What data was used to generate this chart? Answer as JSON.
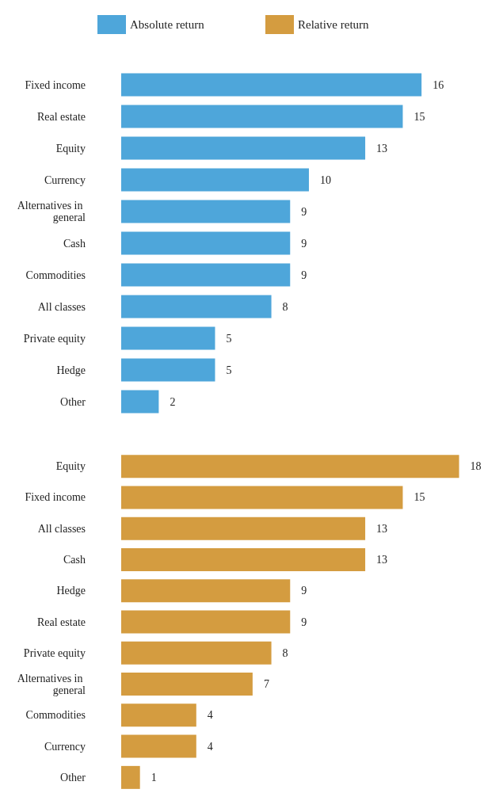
{
  "chart_data": [
    {
      "type": "bar",
      "orientation": "horizontal",
      "categories": [
        "Fixed income",
        "Real estate",
        "Equity",
        "Currency",
        "Alternatives in general",
        "Cash",
        "Commodities",
        "All classes",
        "Private equity",
        "Hedge",
        "Other"
      ],
      "series": [
        {
          "name": "Absolute return",
          "color": "#4ea6da",
          "values": [
            16,
            15,
            13,
            10,
            9,
            9,
            9,
            8,
            5,
            5,
            2
          ]
        }
      ],
      "data_labels": true,
      "legend": "top left",
      "grid": false,
      "tick_labels": "y"
    },
    {
      "type": "bar",
      "orientation": "horizontal",
      "categories": [
        "Equity",
        "Fixed income",
        "All classes",
        "Cash",
        "Hedge",
        "Real estate",
        "Private equity",
        "Alternatives in general",
        "Commodities",
        "Currency",
        "Other"
      ],
      "series": [
        {
          "name": "Relative return",
          "color": "#d49c40",
          "values": [
            18,
            15,
            13,
            13,
            9,
            9,
            8,
            7,
            4,
            4,
            1
          ]
        }
      ],
      "data_labels": true,
      "legend": "top right",
      "grid": false,
      "tick_labels": "y"
    }
  ]
}
